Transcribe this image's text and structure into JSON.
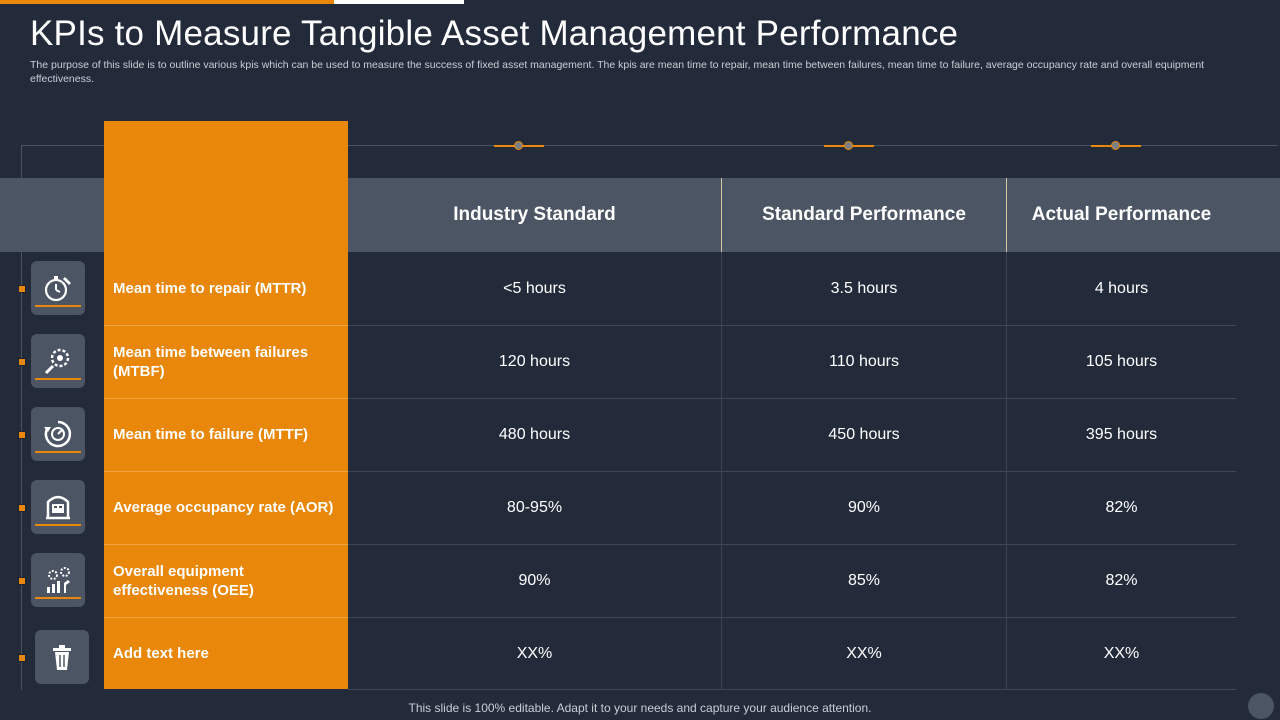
{
  "title": "KPIs to Measure Tangible Asset Management Performance",
  "subtitle": "The purpose of this slide is to outline various kpis which can be used to measure the success of fixed asset management. The kpis are mean time to repair, mean time between failures, mean time to failure, average occupancy rate and overall equipment effectiveness.",
  "columns": [
    "Industry Standard",
    "Standard Performance",
    "Actual Performance"
  ],
  "rows": [
    {
      "icon": "stopwatch-wrench-icon",
      "label": "Mean time to repair (MTTR)",
      "values": [
        "<5 hours",
        "3.5 hours",
        "4 hours"
      ]
    },
    {
      "icon": "gear-magnifier-icon",
      "label": "Mean time between failures (MTBF)",
      "values": [
        "120 hours",
        "110 hours",
        "105 hours"
      ]
    },
    {
      "icon": "gauge-cycle-icon",
      "label": "Mean time to failure (MTTF)",
      "values": [
        "480 hours",
        "450 hours",
        "395 hours"
      ]
    },
    {
      "icon": "occupancy-icon",
      "label": "Average occupancy rate (AOR)",
      "values": [
        "80-95%",
        "90%",
        "82%"
      ]
    },
    {
      "icon": "equipment-chart-icon",
      "label": "Overall equipment effectiveness (OEE)",
      "values": [
        "90%",
        "85%",
        "82%"
      ]
    },
    {
      "icon": "trash-icon",
      "label": "Add text here",
      "values": [
        "XX%",
        "XX%",
        "XX%"
      ]
    }
  ],
  "footer": "This slide is 100% editable. Adapt it to your  needs and capture your audience attention.",
  "colors": {
    "accent": "#e8870a",
    "background": "#232b3a",
    "band": "#4b5563"
  }
}
